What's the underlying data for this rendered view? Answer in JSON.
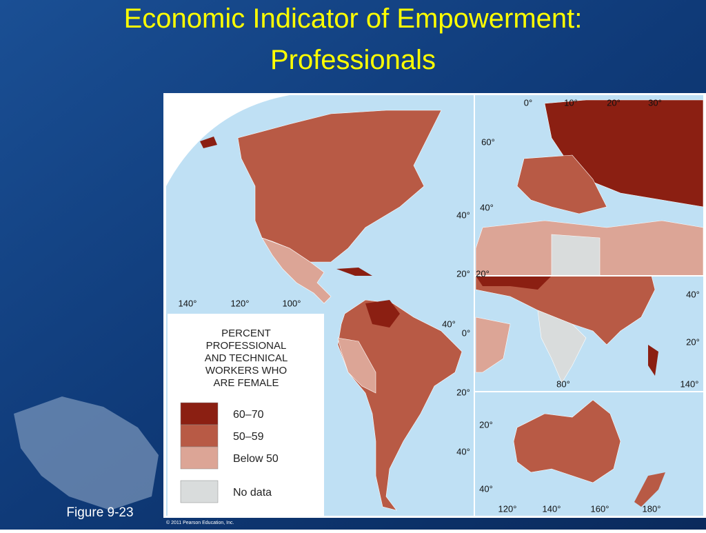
{
  "slide": {
    "title_lines": [
      "Economic Indicator of Empowerment:",
      "Professionals"
    ],
    "figure_label": "Figure 9-23"
  },
  "map": {
    "legend": {
      "title_lines": [
        "PERCENT",
        "PROFESSIONAL",
        "AND TECHNICAL",
        "WORKERS WHO",
        "ARE FEMALE"
      ],
      "items": [
        {
          "label": "60–70",
          "color": "#8b1f12"
        },
        {
          "label": "50–59",
          "color": "#b85a45"
        },
        {
          "label": "Below 50",
          "color": "#dca596"
        },
        {
          "label": "No data",
          "color": "#d9dcdc"
        }
      ]
    },
    "americas_labels": [
      "140°",
      "120°",
      "100°",
      "40°",
      "20°",
      "40°",
      "0°",
      "20°",
      "40°"
    ],
    "europe_labels": [
      "0°",
      "10°",
      "20°",
      "30°",
      "60°",
      "40°"
    ],
    "asia_labels": [
      "20°",
      "40°",
      "20°",
      "80°",
      "140°"
    ],
    "australia_labels": [
      "20°",
      "40°",
      "120°",
      "140°",
      "160°",
      "180°"
    ],
    "copyright": "© 2011 Pearson Education, Inc."
  }
}
